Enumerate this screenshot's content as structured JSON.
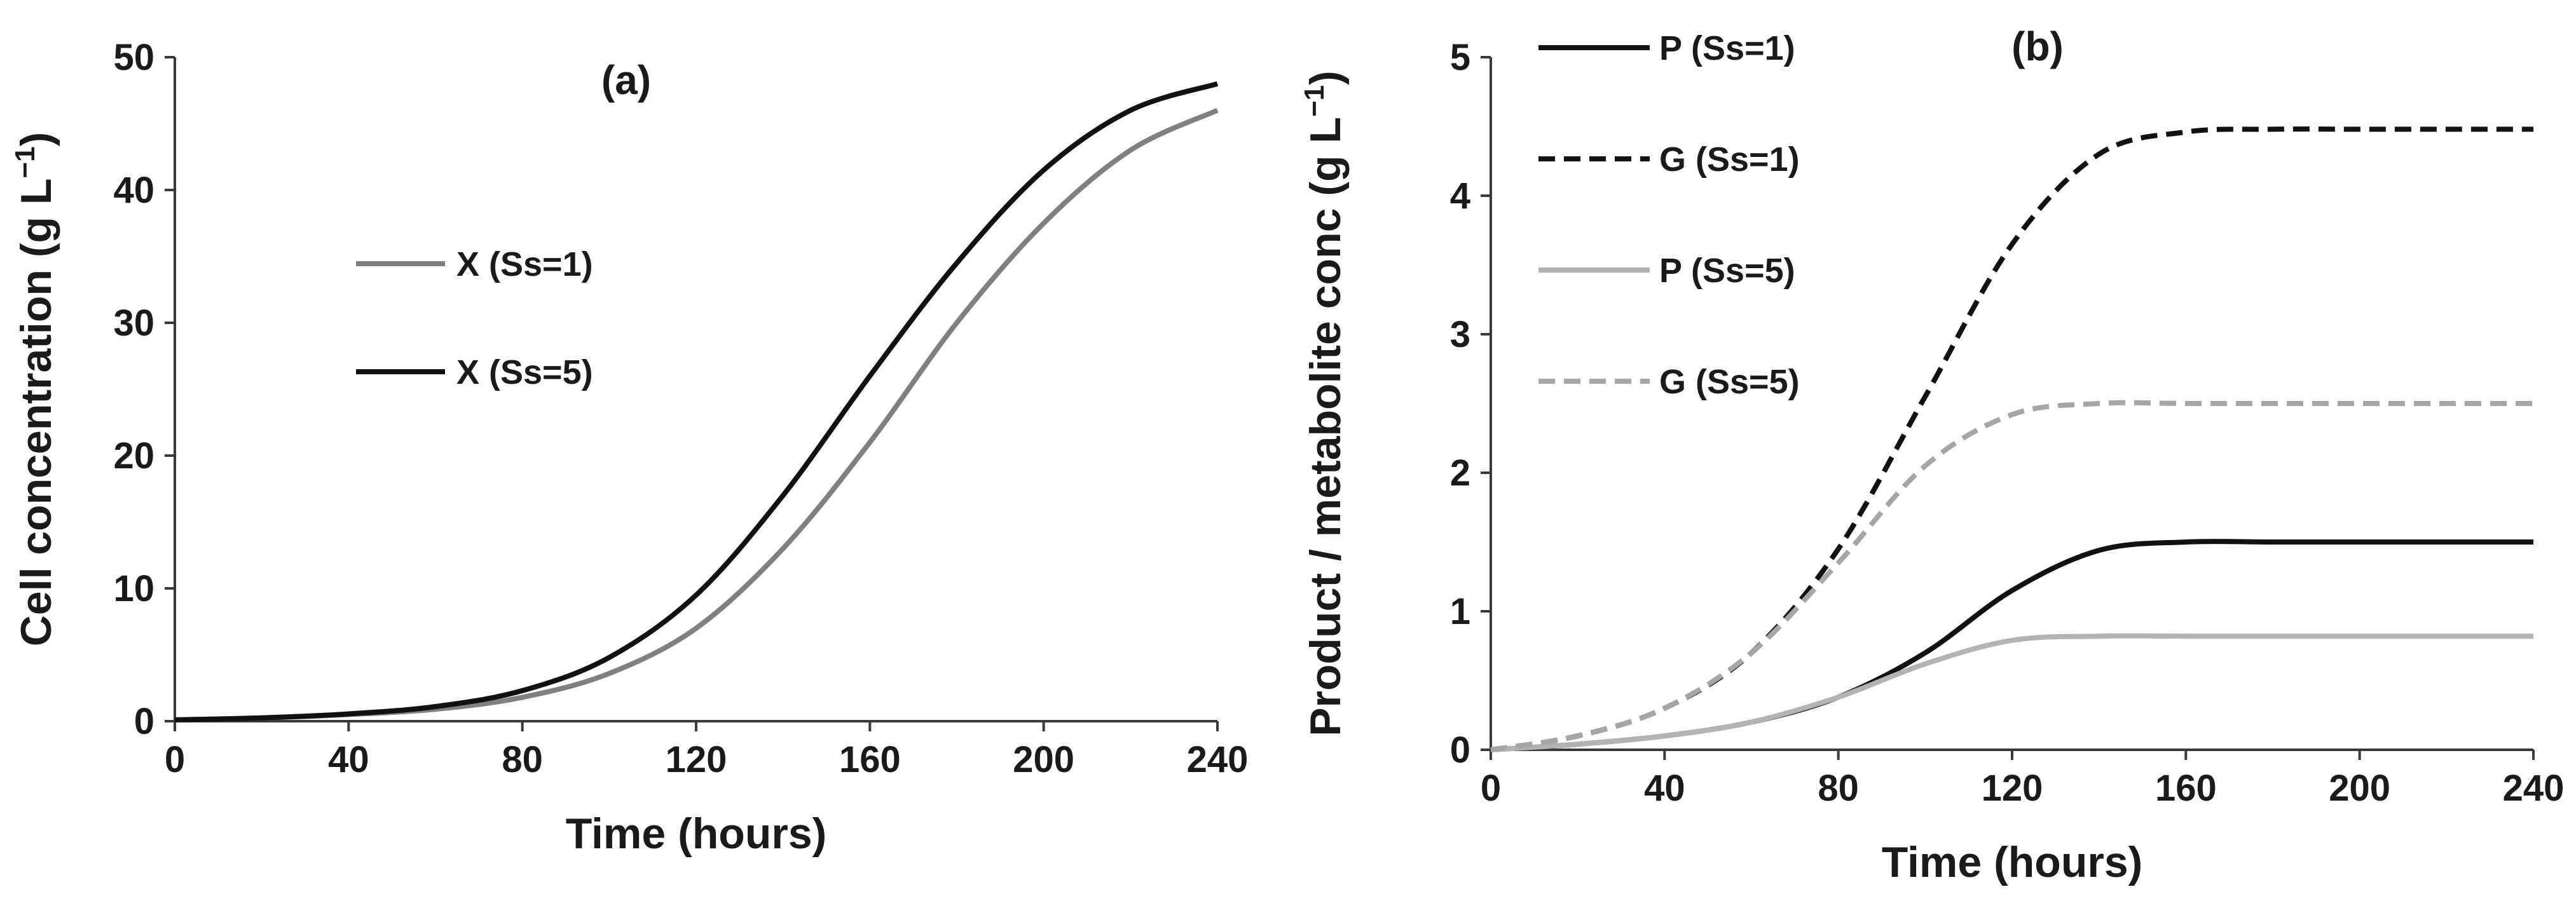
{
  "chart_data": [
    {
      "type": "line",
      "title": "(a)",
      "xlabel": "Time (hours)",
      "ylabel": "Cell concentration (g L",
      "ylabel_sup": "−1",
      "ylabel_close": ")",
      "xlim": [
        0,
        240
      ],
      "ylim": [
        0,
        50
      ],
      "xticks": [
        "0",
        "40",
        "80",
        "120",
        "160",
        "200",
        "240"
      ],
      "yticks": [
        "0",
        "10",
        "20",
        "30",
        "40",
        "50"
      ],
      "grid": false,
      "legend_position": "center-left",
      "series": [
        {
          "name": "X (Ss=1)",
          "color": "#808080",
          "dash": "solid",
          "x": [
            0,
            20,
            40,
            60,
            80,
            100,
            120,
            140,
            160,
            180,
            200,
            220,
            240
          ],
          "y": [
            0.1,
            0.25,
            0.5,
            0.9,
            1.8,
            3.6,
            7.0,
            13.0,
            21.0,
            30.0,
            37.5,
            43.0,
            46.0
          ]
        },
        {
          "name": "X (Ss=5)",
          "color": "#111111",
          "dash": "solid",
          "x": [
            0,
            20,
            40,
            60,
            80,
            100,
            120,
            140,
            160,
            180,
            200,
            220,
            240
          ],
          "y": [
            0.1,
            0.25,
            0.55,
            1.1,
            2.3,
            4.8,
            9.5,
            17.0,
            26.0,
            34.5,
            41.5,
            46.0,
            48.0
          ]
        }
      ]
    },
    {
      "type": "line",
      "title": "(b)",
      "xlabel": "Time (hours)",
      "ylabel": "Product / metabolite conc (g L",
      "ylabel_sup": "−1",
      "ylabel_close": ")",
      "xlim": [
        0,
        240
      ],
      "ylim": [
        0,
        5
      ],
      "xticks": [
        "0",
        "40",
        "80",
        "120",
        "160",
        "200",
        "240"
      ],
      "yticks": [
        "0",
        "1",
        "2",
        "3",
        "4",
        "5"
      ],
      "grid": false,
      "legend_position": "top-left",
      "series": [
        {
          "name": "P (Ss=1)",
          "color": "#111111",
          "dash": "solid",
          "x": [
            0,
            20,
            40,
            60,
            80,
            100,
            120,
            140,
            160,
            180,
            200,
            220,
            240
          ],
          "y": [
            0.0,
            0.04,
            0.1,
            0.2,
            0.38,
            0.7,
            1.15,
            1.44,
            1.5,
            1.5,
            1.5,
            1.5,
            1.5
          ]
        },
        {
          "name": "G (Ss=1)",
          "color": "#111111",
          "dash": "dashed",
          "x": [
            0,
            20,
            40,
            60,
            80,
            100,
            120,
            140,
            160,
            180,
            200,
            220,
            240
          ],
          "y": [
            0.0,
            0.1,
            0.3,
            0.7,
            1.45,
            2.55,
            3.65,
            4.3,
            4.46,
            4.48,
            4.48,
            4.48,
            4.48
          ]
        },
        {
          "name": "P (Ss=5)",
          "color": "#b3b3b3",
          "dash": "solid",
          "x": [
            0,
            20,
            40,
            60,
            80,
            100,
            120,
            140,
            160,
            180,
            200,
            220,
            240
          ],
          "y": [
            0.0,
            0.04,
            0.1,
            0.2,
            0.38,
            0.62,
            0.79,
            0.82,
            0.82,
            0.82,
            0.82,
            0.82,
            0.82
          ]
        },
        {
          "name": "G (Ss=5)",
          "color": "#a6a6a6",
          "dash": "dashed",
          "x": [
            0,
            20,
            40,
            60,
            80,
            100,
            120,
            140,
            160,
            180,
            200,
            220,
            240
          ],
          "y": [
            0.0,
            0.1,
            0.3,
            0.7,
            1.35,
            2.05,
            2.42,
            2.5,
            2.5,
            2.5,
            2.5,
            2.5,
            2.5
          ]
        }
      ]
    }
  ]
}
